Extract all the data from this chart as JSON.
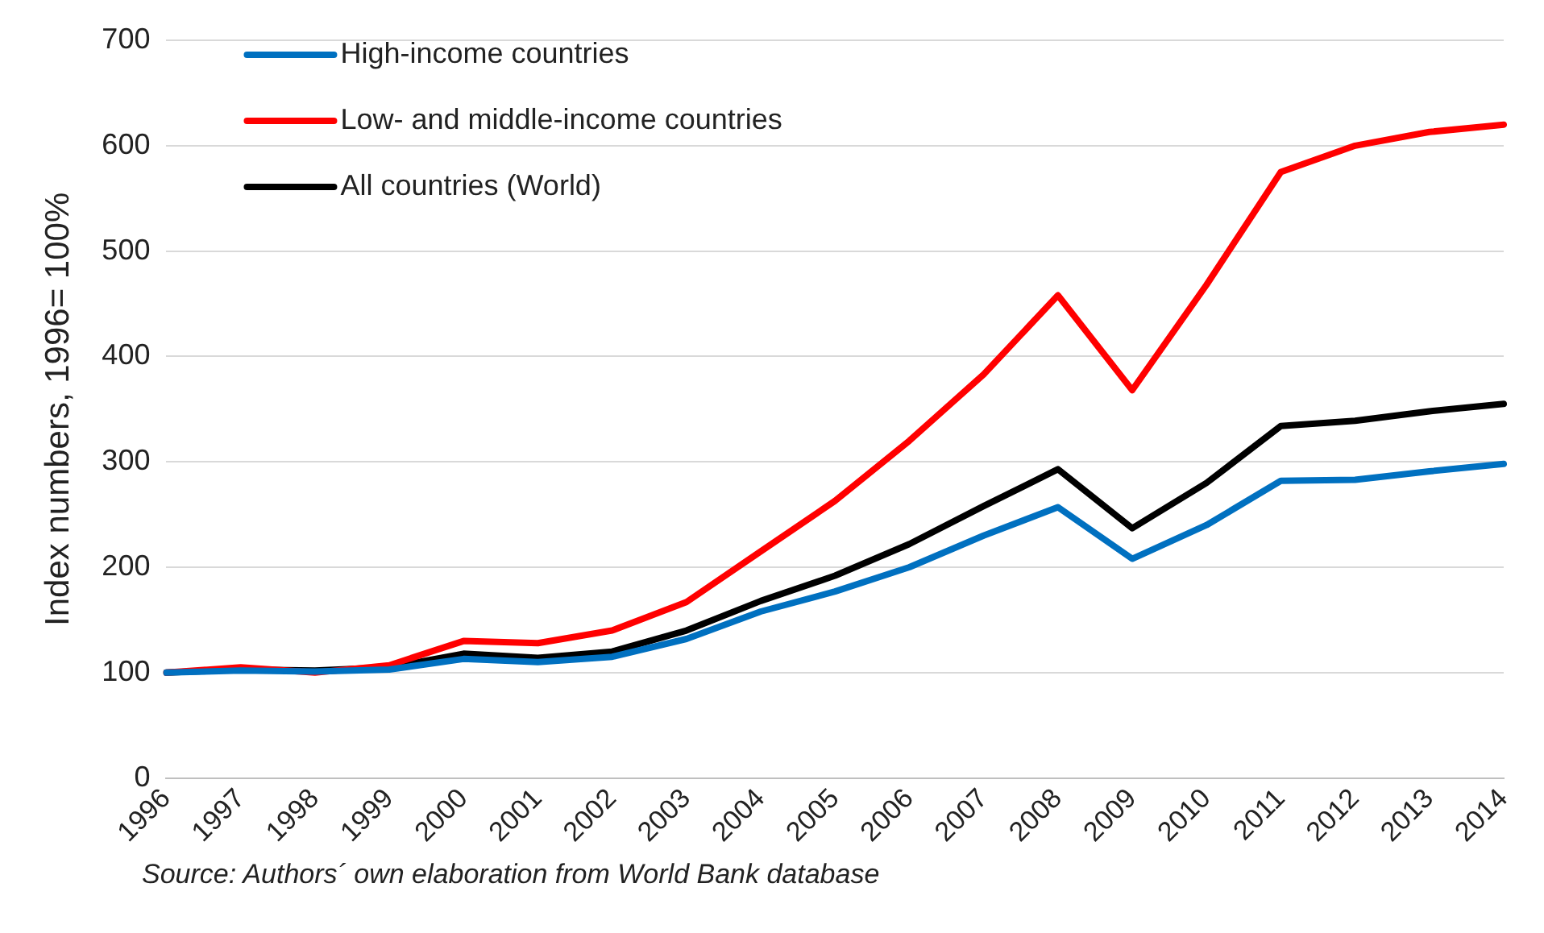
{
  "chart_data": {
    "type": "line",
    "ylabel": "Index numbers, 1996= 100%",
    "categories": [
      "1996",
      "1997",
      "1998",
      "1999",
      "2000",
      "2001",
      "2002",
      "2003",
      "2004",
      "2005",
      "2006",
      "2007",
      "2008",
      "2009",
      "2010",
      "2011",
      "2012",
      "2013",
      "2014"
    ],
    "series": [
      {
        "name": "High-income countries",
        "color": "#0070c0",
        "values": [
          100,
          102,
          101,
          103,
          113,
          110,
          115,
          132,
          158,
          177,
          200,
          230,
          257,
          208,
          240,
          282,
          283,
          291,
          298
        ]
      },
      {
        "name": "Low- and middle-income countries",
        "color": "#ff0000",
        "values": [
          100,
          105,
          100,
          107,
          130,
          128,
          140,
          167,
          215,
          263,
          320,
          383,
          458,
          368,
          468,
          575,
          600,
          613,
          620
        ]
      },
      {
        "name": "All countries (World)",
        "color": "#000000",
        "values": [
          100,
          103,
          102,
          105,
          118,
          114,
          120,
          140,
          168,
          192,
          222,
          258,
          293,
          237,
          280,
          334,
          339,
          348,
          355
        ]
      }
    ],
    "ylim": [
      0,
      700
    ],
    "yticks": [
      0,
      100,
      200,
      300,
      400,
      500,
      600,
      700
    ],
    "grid": "y",
    "legend": "top left",
    "marker": "none",
    "line_style": "solid",
    "annotations": [
      "Source:  Authors´ own elaboration from World Bank database"
    ]
  }
}
